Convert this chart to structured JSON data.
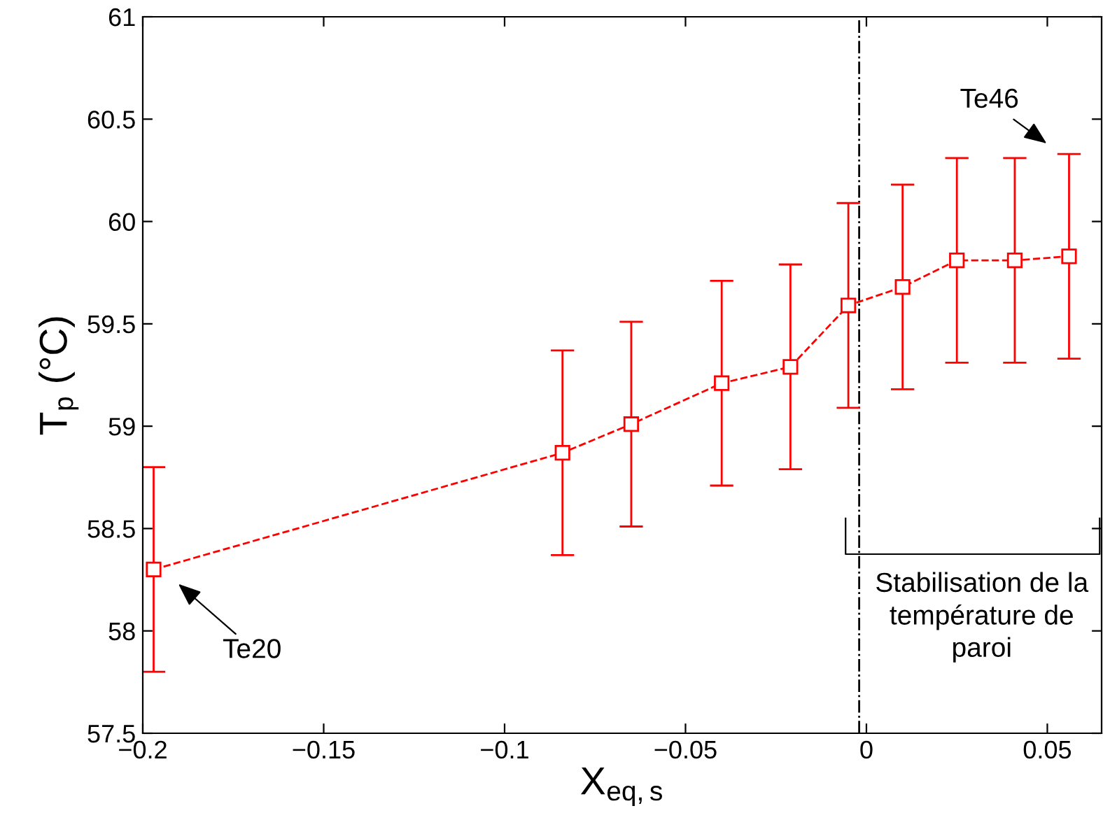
{
  "chart_data": {
    "type": "line",
    "xlabel": "X$_{eq,s}$",
    "ylabel": "T$_{p}$ (°C)",
    "x": [
      -0.197,
      -0.084,
      -0.065,
      -0.04,
      -0.021,
      -0.005,
      0.01,
      0.025,
      0.041,
      0.056
    ],
    "series": [
      {
        "color": "#ff0000",
        "values": [
          58.3,
          58.87,
          59.01,
          59.21,
          59.29,
          59.59,
          59.68,
          59.81,
          59.81,
          59.83
        ],
        "errors": [
          0.5,
          0.5,
          0.5,
          0.5,
          0.5,
          0.5,
          0.5,
          0.5,
          0.5,
          0.5
        ]
      }
    ],
    "marker": "square",
    "line_style": "dashed",
    "grid": false,
    "legend": false,
    "xlim": [
      -0.2,
      0.065
    ],
    "xticks": [
      {
        "value": -0.2,
        "label": "−0.2"
      },
      {
        "value": -0.15,
        "label": "−0.15"
      },
      {
        "value": -0.1,
        "label": "−0.1"
      },
      {
        "value": -0.05,
        "label": "−0.05"
      },
      0,
      0.05
    ],
    "ylim": [
      57.5,
      61
    ],
    "yticks": [
      57.5,
      58,
      58.5,
      59,
      59.5,
      60,
      60.5,
      61
    ],
    "ref_lines": [
      {
        "axis": "x",
        "value": -0.002,
        "color": "#000000",
        "line_style": "dashdot"
      }
    ],
    "annotations": [
      "Te20",
      "Te46",
      "Stabilisation de la\ntempérature de\nparoi"
    ]
  }
}
